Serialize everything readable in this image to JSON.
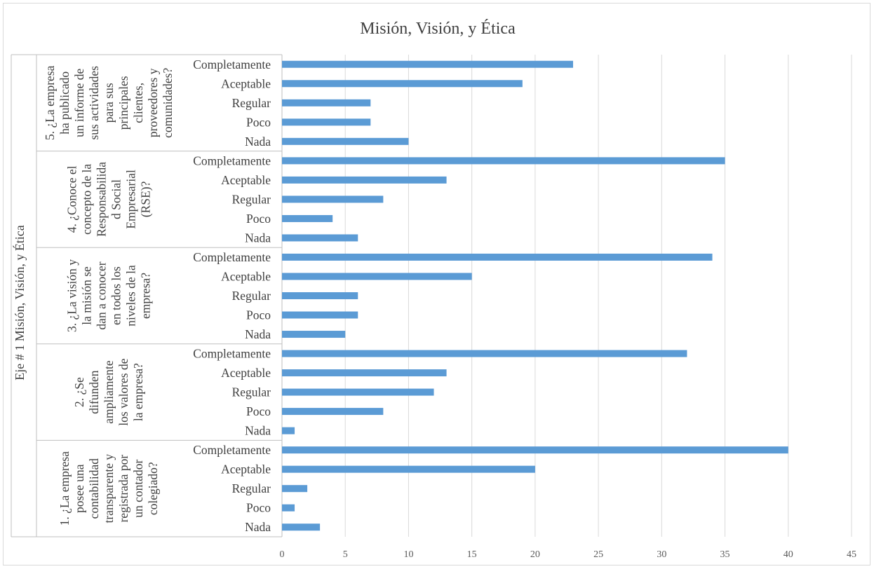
{
  "chart_data": {
    "type": "bar",
    "orientation": "horizontal",
    "title": "Misión, Visión, y Ética",
    "outer_axis_label": "Eje # 1 Misión, Visión, y Ética",
    "xlim": [
      0,
      45
    ],
    "x_ticks": [
      "0",
      "5",
      "10",
      "15",
      "20",
      "25",
      "30",
      "35",
      "40",
      "45"
    ],
    "grid": true,
    "legend": "none",
    "bar_color": "#5b9bd5",
    "groups": [
      {
        "label_lines": [
          "5. ¿La empresa",
          "ha publicado",
          "un informe de",
          "sus actividades",
          "para sus",
          "principales",
          "clientes,",
          "proveedores y",
          "comunidades?"
        ],
        "categories": [
          "Completamente",
          "Aceptable",
          "Regular",
          "Poco",
          "Nada"
        ],
        "values": [
          23,
          19,
          7,
          7,
          10
        ]
      },
      {
        "label_lines": [
          "4. ¿Conoce el",
          "concepto de la",
          "Responsabilida",
          "d Social",
          "Empresarial",
          "(RSE)?"
        ],
        "categories": [
          "Completamente",
          "Aceptable",
          "Regular",
          "Poco",
          "Nada"
        ],
        "values": [
          35,
          13,
          8,
          4,
          6
        ]
      },
      {
        "label_lines": [
          "3. ¿La visión y",
          "la misión se",
          "dan a conocer",
          "en todos los",
          "niveles de la",
          "empresa?"
        ],
        "categories": [
          "Completamente",
          "Aceptable",
          "Regular",
          "Poco",
          "Nada"
        ],
        "values": [
          34,
          15,
          6,
          6,
          5
        ]
      },
      {
        "label_lines": [
          "2. ¿Se",
          "difunden",
          "ampliamente",
          "los valores de",
          "la empresa?"
        ],
        "categories": [
          "Completamente",
          "Aceptable",
          "Regular",
          "Poco",
          "Nada"
        ],
        "values": [
          32,
          13,
          12,
          8,
          1
        ]
      },
      {
        "label_lines": [
          "1. ¿La empresa",
          "posee una",
          "contabilidad",
          "transparente y",
          "registrada por",
          "un contador",
          "colegiado?"
        ],
        "categories": [
          "Completamente",
          "Aceptable",
          "Regular",
          "Poco",
          "Nada"
        ],
        "values": [
          40,
          20,
          2,
          1,
          3
        ]
      }
    ]
  }
}
